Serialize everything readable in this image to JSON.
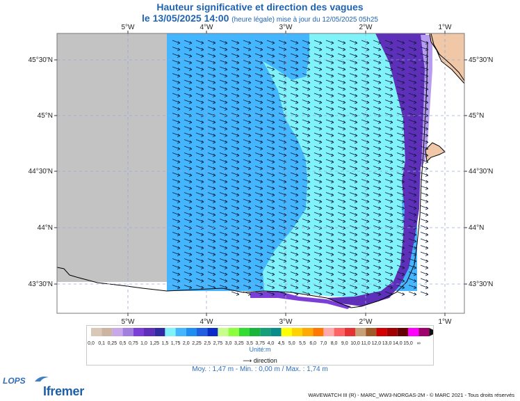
{
  "header": {
    "title": "Hauteur significative et direction des vagues",
    "date_line": "le 13/05/2025 14:00",
    "date_note": "(heure légale) mise à jour du 12/05/2025 05h25"
  },
  "map": {
    "lon_ticks": [
      "5°W",
      "4°W",
      "3°W",
      "2°W",
      "1°W"
    ],
    "lat_ticks": [
      "45°30'N",
      "45°N",
      "44°30'N",
      "44°N",
      "43°30'N"
    ],
    "colors": {
      "no_data": "#c3c3c3",
      "land": "#f0c8a8",
      "band_1_5_1_75": "#7ff2fa",
      "band_1_75_2_0": "#43b6ff",
      "band_0_75_1_0": "#7b3fd8",
      "band_1_0_1_25": "#5e2fb9",
      "band_0_5_0_75": "#b79cf0"
    }
  },
  "legend": {
    "labels": [
      "0,0",
      "0,1",
      "0,25",
      "0,5",
      "0,75",
      "1,0",
      "1,25",
      "1,5",
      "1,75",
      "2,0",
      "2,25",
      "2,5",
      "2,75",
      "3,0",
      "3,25",
      "3,5",
      "3,75",
      "4,0",
      "4,5",
      "5,0",
      "5,5",
      "6,0",
      "7,0",
      "8,0",
      "9,0",
      "10,0",
      "11,0",
      "12,0",
      "13,0",
      "14,0",
      "15,0",
      "∞"
    ],
    "colors": [
      "#d9c8b8",
      "#cdb4a0",
      "#c8a8e8",
      "#a17fdf",
      "#7b3fd8",
      "#5e2fb9",
      "#2f2ba0",
      "#7ff2fa",
      "#43b6ff",
      "#1e8ff0",
      "#1f5fe0",
      "#0a2bc8",
      "#c8ff8c",
      "#8cff3c",
      "#32dc32",
      "#19b43c",
      "#14a078",
      "#0a8c8c",
      "#ffff00",
      "#ffd200",
      "#ffaa00",
      "#ff7800",
      "#ffaaaa",
      "#ff6464",
      "#e63232",
      "#c8a078",
      "#a05a28",
      "#d20000",
      "#a00000",
      "#640000",
      "#ff00ff",
      "#a0006e"
    ],
    "unit": "Unité:m",
    "direction_label": "direction"
  },
  "stats": {
    "text": "Moy. : 1,47 m   -   Min. : 0,00 m / Max. : 1,74 m"
  },
  "logos": {
    "lops": "LOPS",
    "ifremer": "Ifremer"
  },
  "footer": "WAVEWATCH III (R) - MARC_WW3-NORGAS-2M - © MARC 2021 - Tous droits réservés"
}
